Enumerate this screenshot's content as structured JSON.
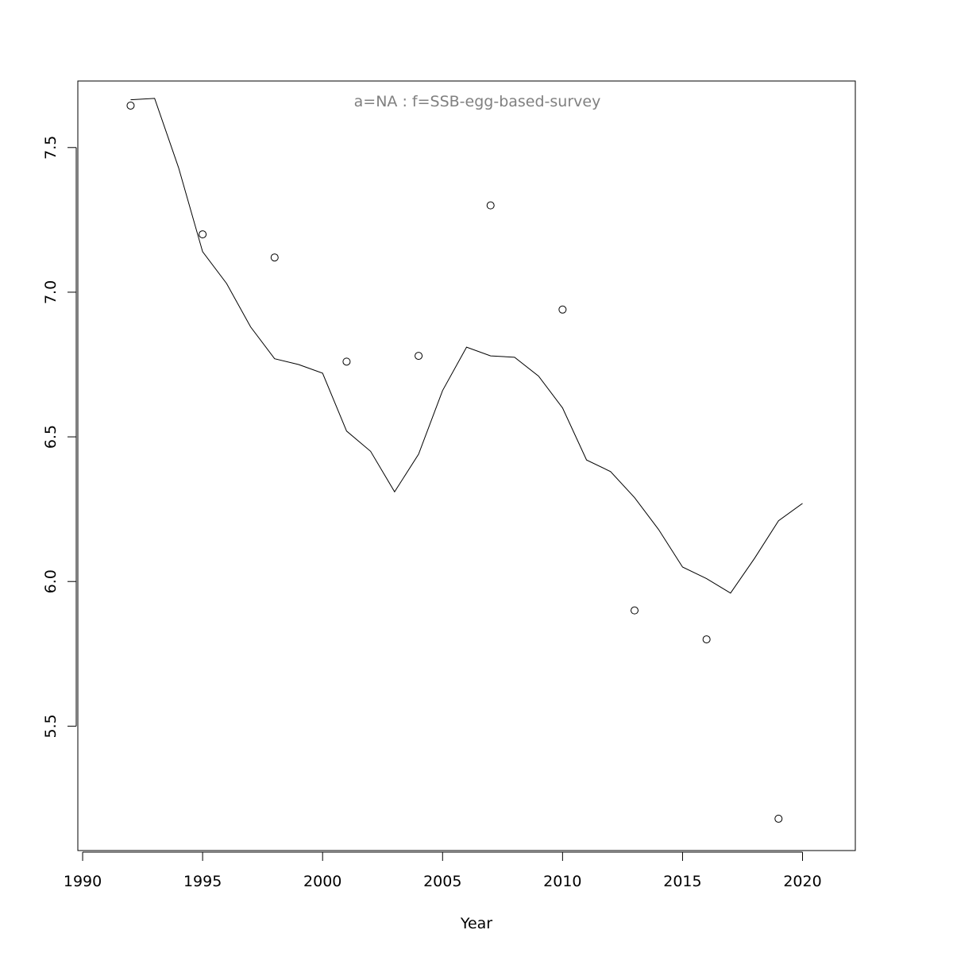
{
  "chart_data": {
    "type": "line",
    "title": "a=NA  :  f=SSB-egg-based-survey",
    "xlabel": "Year",
    "ylabel": "",
    "xlim": [
      1989.8,
      2022.2
    ],
    "ylim": [
      5.07,
      7.73
    ],
    "x_ticks": [
      1990,
      1995,
      2000,
      2005,
      2010,
      2015,
      2020
    ],
    "y_ticks": [
      5.5,
      6.0,
      6.5,
      7.0,
      7.5
    ],
    "x_tick_labels": [
      "1990",
      "1995",
      "2000",
      "2005",
      "2010",
      "2015",
      "2020"
    ],
    "y_tick_labels": [
      "5.5",
      "6.0",
      "6.5",
      "7.0",
      "7.5"
    ],
    "grid": false,
    "series": [
      {
        "kind": "line",
        "color": "#000000",
        "x": [
          1992,
          1993,
          1994,
          1995,
          1996,
          1997,
          1998,
          1999,
          2000,
          2001,
          2002,
          2003,
          2004,
          2005,
          2006,
          2007,
          2008,
          2009,
          2010,
          2011,
          2012,
          2013,
          2014,
          2015,
          2016,
          2017,
          2018,
          2019,
          2020
        ],
        "y": [
          7.665,
          7.67,
          7.43,
          7.14,
          7.03,
          6.88,
          6.77,
          6.75,
          6.72,
          6.52,
          6.45,
          6.31,
          6.44,
          6.66,
          6.81,
          6.78,
          6.775,
          6.71,
          6.6,
          6.42,
          6.38,
          6.29,
          6.18,
          6.05,
          6.01,
          5.96,
          6.08,
          6.21,
          6.27
        ]
      },
      {
        "kind": "points",
        "color": "#000000",
        "x": [
          1992,
          1995,
          1998,
          2001,
          2004,
          2007,
          2010,
          2013,
          2016,
          2019
        ],
        "y": [
          7.645,
          7.2,
          7.12,
          6.76,
          6.78,
          7.3,
          6.94,
          5.9,
          5.8,
          5.18
        ]
      }
    ]
  }
}
